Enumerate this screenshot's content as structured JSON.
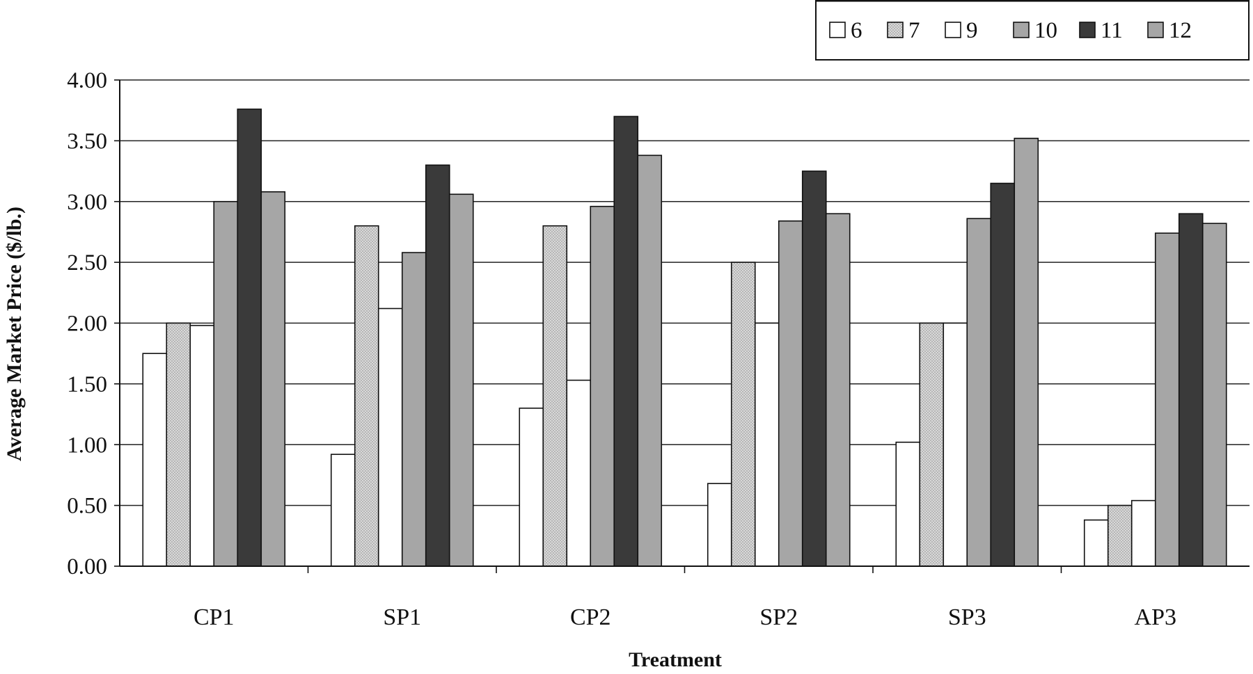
{
  "chart_data": {
    "type": "bar",
    "xlabel": "Treatment",
    "ylabel": "Average Market Price ($/lb.)",
    "ylim": [
      0,
      4
    ],
    "yticks": [
      "0.00",
      "0.50",
      "1.00",
      "1.50",
      "2.00",
      "2.50",
      "3.00",
      "3.50",
      "4.00"
    ],
    "grid": true,
    "legend_position": "top-right",
    "categories": [
      "CP1",
      "SP1",
      "CP2",
      "SP2",
      "SP3",
      "AP3"
    ],
    "series": [
      {
        "name": "6",
        "style": "white",
        "values": [
          1.75,
          0.92,
          1.3,
          0.68,
          1.02,
          0.38
        ]
      },
      {
        "name": "7",
        "style": "stipple",
        "values": [
          2.0,
          2.8,
          2.8,
          2.5,
          2.0,
          0.5
        ]
      },
      {
        "name": "9",
        "style": "white",
        "values": [
          1.98,
          2.12,
          1.53,
          2.0,
          2.0,
          0.54
        ]
      },
      {
        "name": "10",
        "style": "gray",
        "values": [
          3.0,
          2.58,
          2.96,
          2.84,
          2.86,
          2.74
        ]
      },
      {
        "name": "11",
        "style": "dark",
        "values": [
          3.76,
          3.3,
          3.7,
          3.25,
          3.15,
          2.9
        ]
      },
      {
        "name": "12",
        "style": "gray",
        "values": [
          3.08,
          3.06,
          3.38,
          2.9,
          3.52,
          2.82
        ]
      }
    ],
    "colors": {
      "white": "#ffffff",
      "stipple_bg": "#d9d9d9",
      "stipple_dot": "#8c8c8c",
      "gray": "#a6a6a6",
      "dark": "#3a3a3a",
      "outline": "#111111",
      "grid": "#222222"
    }
  }
}
